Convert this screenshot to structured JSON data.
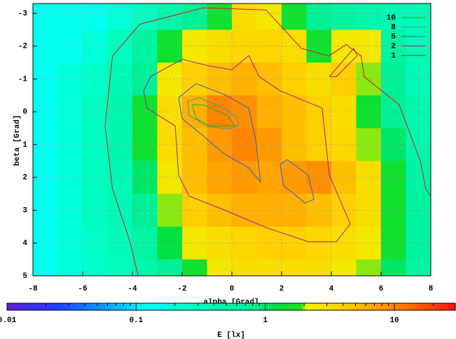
{
  "chart_data": {
    "type": "heatmap",
    "x_label": "alpha [Grad]",
    "y_label": "beta [Grad]",
    "xlim": [
      -8,
      8
    ],
    "xticks": [
      -8,
      -6,
      -4,
      -2,
      0,
      2,
      4,
      6,
      8
    ],
    "ylim": [
      -3.3,
      5
    ],
    "y_reversed": true,
    "yticks": [
      -3,
      -2,
      -1,
      0,
      1,
      2,
      3,
      4,
      5
    ],
    "grid": true,
    "x": [
      -7.5,
      -6.5,
      -5.5,
      -4.5,
      -3.5,
      -2.5,
      -1.5,
      -0.5,
      0.5,
      1.5,
      2.5,
      3.5,
      4.5,
      5.5,
      6.5,
      7.5
    ],
    "y": [
      -3,
      -2,
      -1,
      0,
      1,
      2,
      3,
      4,
      5
    ],
    "z": [
      [
        0.15,
        0.15,
        0.15,
        0.2,
        0.3,
        0.5,
        0.8,
        1.5,
        3,
        2.5,
        1.5,
        0.8,
        0.6,
        0.5,
        0.4,
        0.4
      ],
      [
        0.15,
        0.15,
        0.2,
        0.3,
        0.6,
        1.5,
        2.5,
        3,
        3.5,
        3.5,
        3,
        1.5,
        2.5,
        2.5,
        0.6,
        0.4
      ],
      [
        0.15,
        0.2,
        0.25,
        0.4,
        0.8,
        2.5,
        4,
        5,
        6,
        5,
        4,
        3,
        4,
        2,
        0.8,
        0.4
      ],
      [
        0.15,
        0.2,
        0.3,
        0.5,
        1.5,
        3,
        6,
        10,
        9,
        6,
        5,
        4,
        3,
        1.5,
        0.8,
        0.5
      ],
      [
        0.15,
        0.2,
        0.3,
        0.5,
        1.5,
        3,
        5,
        8,
        10,
        8,
        5,
        4,
        3.5,
        2,
        1,
        0.5
      ],
      [
        0.15,
        0.2,
        0.3,
        0.4,
        1,
        2.5,
        5,
        7,
        8,
        7,
        8,
        9,
        5,
        3,
        1.5,
        0.6
      ],
      [
        0.15,
        0.2,
        0.3,
        0.4,
        0.8,
        2,
        4,
        5,
        6,
        6,
        6,
        5,
        4,
        3,
        1.5,
        0.7
      ],
      [
        0.15,
        0.2,
        0.25,
        0.35,
        0.6,
        1.2,
        2.5,
        3,
        3.5,
        4,
        4,
        3.5,
        3,
        2.5,
        1.5,
        0.7
      ],
      [
        0.15,
        0.2,
        0.25,
        0.3,
        0.5,
        0.8,
        1.5,
        2.5,
        3,
        3,
        3,
        3,
        2.5,
        2,
        1,
        0.6
      ]
    ],
    "palette": [
      {
        "value": 0.01,
        "color": "#6020d0"
      },
      {
        "value": 0.025,
        "color": "#2040ff"
      },
      {
        "value": 0.06,
        "color": "#10a0ff"
      },
      {
        "value": 0.12,
        "color": "#00ffff"
      },
      {
        "value": 0.25,
        "color": "#00ffc8"
      },
      {
        "value": 0.8,
        "color": "#00f098"
      },
      {
        "value": 1.2,
        "color": "#00e040"
      },
      {
        "value": 1.9,
        "color": "#20e020"
      },
      {
        "value": 2.1,
        "color": "#f0f000"
      },
      {
        "value": 4,
        "color": "#ffd000"
      },
      {
        "value": 8,
        "color": "#ff9a00"
      },
      {
        "value": 15,
        "color": "#ff6000"
      },
      {
        "value": 30,
        "color": "#ff1010"
      }
    ],
    "colorbar": {
      "label": "E [lx]",
      "log_scale": true,
      "lim": [
        0.01,
        30
      ],
      "ticks": [
        0.01,
        0.1,
        1,
        10
      ],
      "minor_ticks": true
    },
    "contours": [
      {
        "name": "10",
        "color": "#20b020",
        "pieces": [
          {
            "x": [
              -1.59,
              -1.17,
              -0.17,
              0.11,
              -0.87,
              -1.44,
              -1.59
            ],
            "y": [
              -0.21,
              -0.21,
              0.11,
              0.43,
              0.43,
              0.21,
              -0.21
            ]
          }
        ]
      },
      {
        "name": "8",
        "color": "#3a9aa8",
        "pieces": [
          {
            "x": [
              -1.77,
              -1.3,
              -0.31,
              0.25,
              0.25,
              -0.17,
              -1.01,
              -1.72,
              -1.77
            ],
            "y": [
              -0.32,
              -0.43,
              -0.11,
              0.21,
              0.43,
              0.53,
              0.43,
              0.11,
              -0.32
            ]
          }
        ]
      },
      {
        "name": "5",
        "color": "#3060d0",
        "pieces": [
          {
            "x": [
              -2.14,
              -1.44,
              -0.31,
              0.68,
              0.96,
              1.15,
              0.68,
              -0.31,
              -1.3,
              -2.0,
              -2.14
            ],
            "y": [
              -0.43,
              -0.86,
              -0.53,
              -0.11,
              0.86,
              2.14,
              1.71,
              1.28,
              0.64,
              0.21,
              -0.43
            ]
          },
          {
            "x": [
              1.94,
              2.22,
              3.07,
              3.3,
              2.94,
              2.08,
              1.94
            ],
            "y": [
              1.6,
              1.46,
              1.93,
              2.67,
              2.78,
              2.25,
              1.6
            ]
          }
        ]
      },
      {
        "name": "2",
        "color": "#a020a0",
        "pieces": [
          {
            "x": [
              -3.27,
              -2.0,
              -0.87,
              0.0,
              0.68,
              1.1,
              1.94,
              3.63,
              3.92,
              4.76,
              4.2,
              3.07,
              1.38,
              -0.31,
              -1.72,
              -2.14,
              -2.28,
              -3.41,
              -3.55,
              -3.27
            ],
            "y": [
              -1.07,
              -1.6,
              -1.39,
              -1.28,
              -1.71,
              -1.07,
              -0.64,
              -0.11,
              1.93,
              3.42,
              3.96,
              3.96,
              3.53,
              2.99,
              2.57,
              1.93,
              0.43,
              -0.11,
              -0.64,
              -1.07
            ]
          },
          {
            "x": [
              3.92,
              4.9,
              5.04,
              4.2,
              3.92
            ],
            "y": [
              -1.07,
              -1.93,
              -1.71,
              -1.07,
              -1.07
            ]
          }
        ]
      },
      {
        "name": "1",
        "color": "#d02020",
        "pieces": [
          {
            "x": [
              -3.77,
              -4.1,
              -4.8,
              -5.1,
              -4.8,
              -3.7,
              -1.15,
              1.38,
              2.8,
              3.9,
              4.6,
              5.2,
              5.32,
              6.73,
              7.58,
              7.8,
              8.0
            ],
            "y": [
              5,
              3.96,
              2.35,
              0.43,
              -1.7,
              -2.67,
              -3.17,
              -3.1,
              -1.93,
              -1.7,
              -2.05,
              -1.7,
              -1.07,
              -0.21,
              1.5,
              2.35,
              2.57
            ]
          }
        ]
      }
    ]
  }
}
